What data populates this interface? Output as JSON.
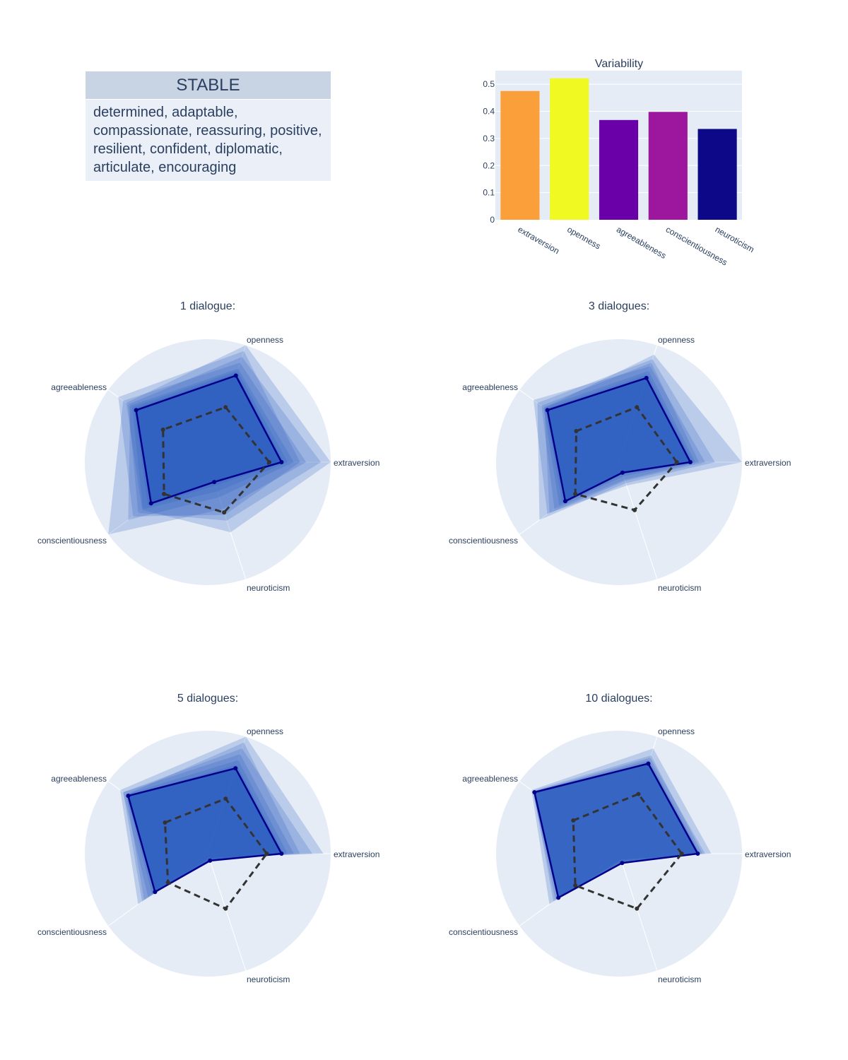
{
  "table": {
    "header": "STABLE",
    "cell": "determined, adaptable, compassionate, reassuring, positive, resilient, confident, diplomatic, articulate, encouraging"
  },
  "chart_data": [
    {
      "type": "bar",
      "title": "Variability",
      "categories": [
        "extraversion",
        "openness",
        "agreeableness",
        "conscientiousness",
        "neuroticism"
      ],
      "values": [
        0.475,
        0.522,
        0.368,
        0.398,
        0.335
      ],
      "colors": [
        "#fb9f3a",
        "#f0f921",
        "#6a00a8",
        "#9c179e",
        "#0d0887"
      ],
      "yticks": [
        "0",
        "0.1",
        "0.2",
        "0.3",
        "0.4",
        "0.5"
      ],
      "ylim": [
        0,
        0.55
      ],
      "grid": true
    },
    {
      "type": "radar",
      "title": "1 dialogue:",
      "axes": [
        "extraversion",
        "openness",
        "agreeableness",
        "conscientiousness",
        "neuroticism"
      ],
      "range": [
        0,
        1
      ],
      "mean": [
        0.6,
        0.74,
        0.72,
        0.57,
        0.17
      ],
      "reference": [
        0.5,
        0.47,
        0.45,
        0.44,
        0.43
      ],
      "ensemble": [
        [
          1.0,
          1.0,
          0.82,
          0.66,
          0.6
        ],
        [
          0.92,
          0.9,
          0.8,
          0.7,
          0.5
        ],
        [
          0.8,
          0.85,
          0.85,
          1.0,
          0.4
        ],
        [
          0.75,
          0.95,
          0.9,
          0.75,
          0.45
        ],
        [
          0.7,
          0.8,
          0.78,
          0.8,
          0.3
        ],
        [
          0.65,
          0.78,
          0.76,
          0.65,
          0.25
        ],
        [
          0.62,
          0.76,
          0.74,
          0.6,
          0.2
        ]
      ],
      "colors": {
        "mean": "#00008b",
        "reference": "#333333",
        "fill": "#2a5bbf"
      }
    },
    {
      "type": "radar",
      "title": "3 dialogues:",
      "axes": [
        "extraversion",
        "openness",
        "agreeableness",
        "conscientiousness",
        "neuroticism"
      ],
      "range": [
        0,
        1
      ],
      "mean": [
        0.58,
        0.72,
        0.72,
        0.54,
        0.09
      ],
      "reference": [
        0.47,
        0.47,
        0.43,
        0.44,
        0.41
      ],
      "ensemble": [
        [
          1.0,
          0.92,
          0.75,
          0.7,
          0.2
        ],
        [
          0.78,
          0.88,
          0.82,
          0.8,
          0.18
        ],
        [
          0.7,
          0.82,
          0.86,
          0.72,
          0.16
        ],
        [
          0.65,
          0.85,
          0.78,
          0.65,
          0.15
        ],
        [
          0.62,
          0.78,
          0.76,
          0.6,
          0.12
        ],
        [
          0.6,
          0.75,
          0.74,
          0.57,
          0.1
        ]
      ],
      "colors": {
        "mean": "#00008b",
        "reference": "#333333",
        "fill": "#2a5bbf"
      }
    },
    {
      "type": "radar",
      "title": "5 dialogues:",
      "axes": [
        "extraversion",
        "openness",
        "agreeableness",
        "conscientiousness",
        "neuroticism"
      ],
      "range": [
        0,
        1
      ],
      "mean": [
        0.6,
        0.73,
        0.8,
        0.53,
        0.06
      ],
      "reference": [
        0.48,
        0.47,
        0.43,
        0.4,
        0.47
      ],
      "ensemble": [
        [
          0.94,
          1.0,
          0.88,
          0.7,
          0.03
        ],
        [
          0.85,
          0.9,
          0.85,
          0.66,
          0.04
        ],
        [
          0.75,
          0.95,
          0.82,
          0.64,
          0.05
        ],
        [
          0.7,
          0.85,
          0.85,
          0.6,
          0.06
        ],
        [
          0.65,
          0.8,
          0.82,
          0.56,
          0.07
        ],
        [
          0.62,
          0.76,
          0.8,
          0.54,
          0.06
        ]
      ],
      "colors": {
        "mean": "#00008b",
        "reference": "#333333",
        "fill": "#2a5bbf"
      }
    },
    {
      "type": "radar",
      "title": "10 dialogues:",
      "axes": [
        "extraversion",
        "openness",
        "agreeableness",
        "conscientiousness",
        "neuroticism"
      ],
      "range": [
        0,
        1
      ],
      "mean": [
        0.64,
        0.77,
        0.85,
        0.61,
        0.08
      ],
      "reference": [
        0.51,
        0.51,
        0.46,
        0.44,
        0.47
      ],
      "ensemble": [
        [
          0.75,
          0.9,
          0.88,
          0.7,
          0.05
        ],
        [
          0.7,
          0.82,
          0.86,
          0.66,
          0.05
        ],
        [
          0.68,
          0.84,
          0.87,
          0.64,
          0.06
        ],
        [
          0.66,
          0.8,
          0.86,
          0.62,
          0.07
        ],
        [
          0.65,
          0.78,
          0.85,
          0.61,
          0.08
        ]
      ],
      "colors": {
        "mean": "#00008b",
        "reference": "#333333",
        "fill": "#2a5bbf"
      }
    }
  ]
}
